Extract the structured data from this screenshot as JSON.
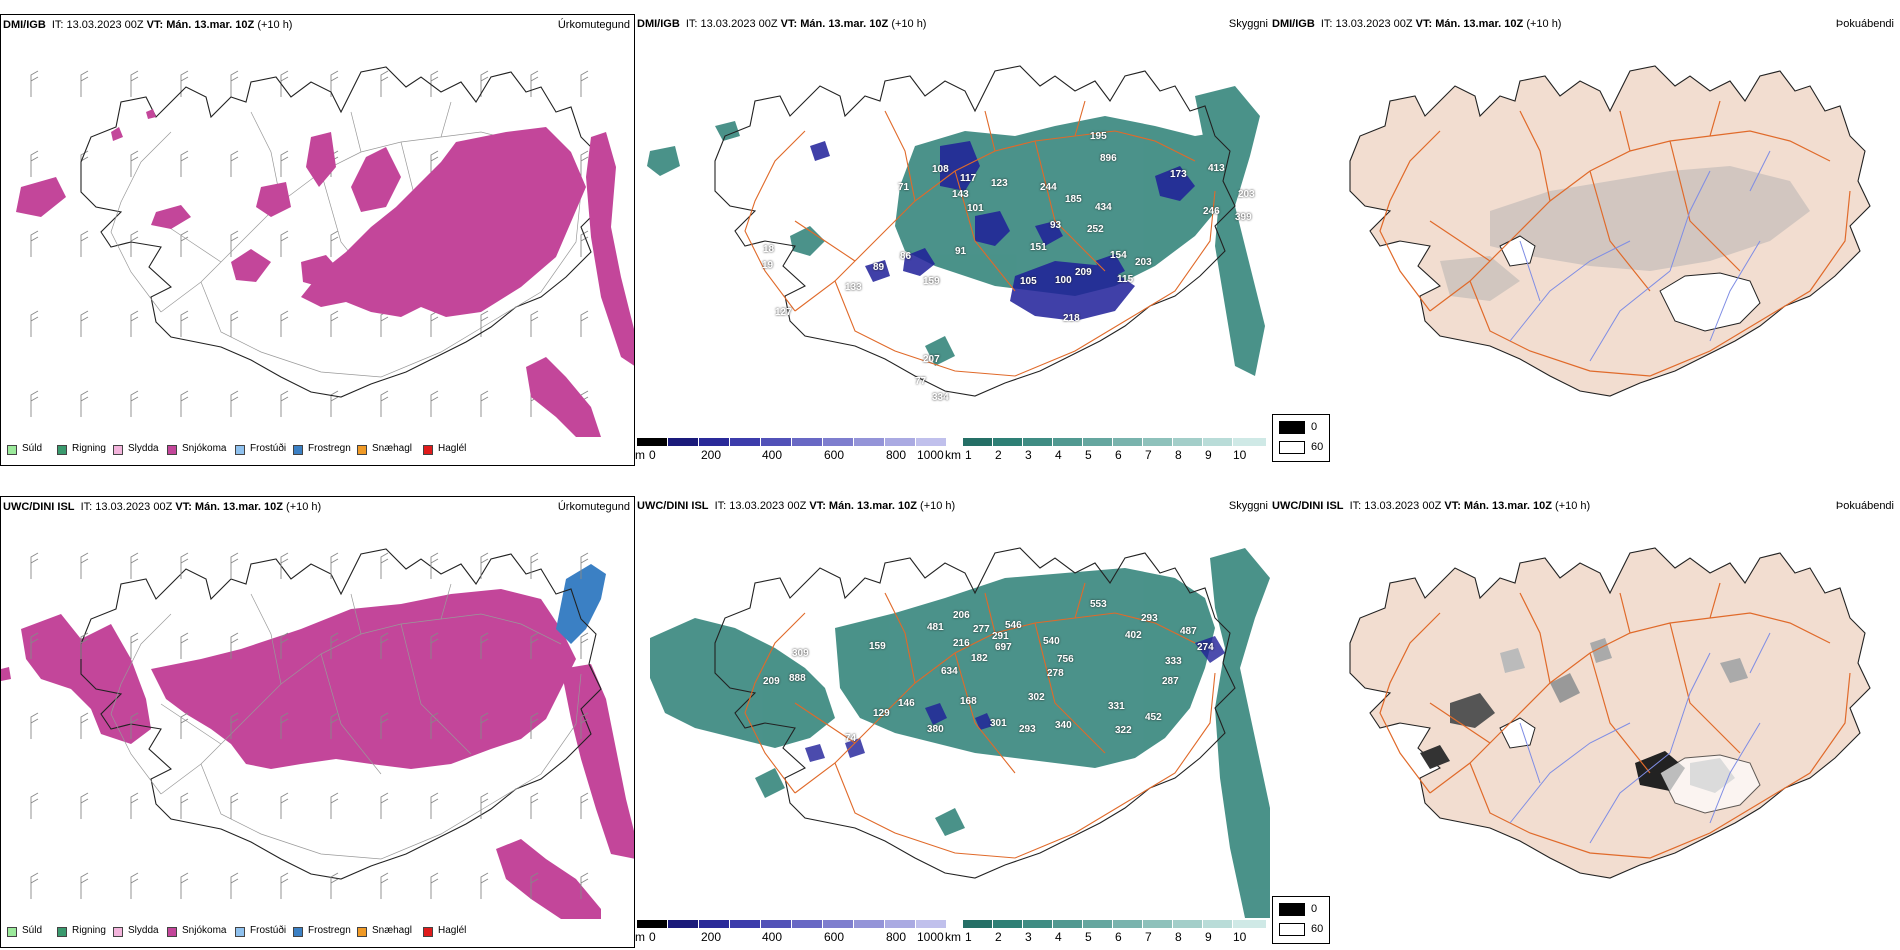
{
  "colors": {
    "snow": "#c3469a",
    "freezing_rain": "#3b80c4",
    "cloud_low": "#2b7f75",
    "cloud_high": "#1f1f99",
    "roads": "#e06a2a",
    "rivers": "#7f8de4",
    "land_fog": "#f2ddd0"
  },
  "rows": [
    {
      "model": "DMI/IGB",
      "run_label": "IT: 13.03.2023 00Z",
      "valid_prefix": "VT:",
      "valid_time": "Mán. 13.mar. 10Z",
      "lead": "(+10 h)",
      "cloud_values": [
        "195",
        "896",
        "173",
        "413",
        "203",
        "399",
        "246",
        "252",
        "434",
        "185",
        "244",
        "93",
        "151",
        "143",
        "101",
        "117",
        "123",
        "108",
        "71",
        "91",
        "86",
        "89",
        "133",
        "159",
        "203",
        "115",
        "154",
        "105",
        "100",
        "209",
        "218",
        "207",
        "77",
        "334",
        "18",
        "19",
        "127"
      ]
    },
    {
      "model": "UWC/DINI ISL",
      "run_label": "IT: 13.03.2023 00Z",
      "valid_prefix": "VT:",
      "valid_time": "Mán. 13.mar. 10Z",
      "lead": "(+10 h)",
      "cloud_values": [
        "553",
        "293",
        "487",
        "274",
        "402",
        "333",
        "287",
        "540",
        "546",
        "697",
        "756",
        "278",
        "302",
        "331",
        "452",
        "322",
        "340",
        "293",
        "301",
        "168",
        "206",
        "481",
        "277",
        "216",
        "182",
        "291",
        "634",
        "129",
        "146",
        "380",
        "309",
        "888",
        "209",
        "159",
        "74"
      ]
    }
  ],
  "tags": {
    "precip": "Úrkomutegund",
    "cloud": "Skyggni",
    "fog": "Þokuábendi"
  },
  "precip_legend": [
    {
      "label": "Súld",
      "color": "#9be99b"
    },
    {
      "label": "Rigning",
      "color": "#3a9a6e"
    },
    {
      "label": "Slydda",
      "color": "#f3b4dc"
    },
    {
      "label": "Snjókoma",
      "color": "#c3469a"
    },
    {
      "label": "Frostúði",
      "color": "#8fc1ee"
    },
    {
      "label": "Frostregn",
      "color": "#3b80c4"
    },
    {
      "label": "Snæhagl",
      "color": "#f09a26"
    },
    {
      "label": "Haglél",
      "color": "#e01b1b"
    }
  ],
  "cloud_base_scale": {
    "unit": "m",
    "labels": [
      "0",
      "200",
      "400",
      "600",
      "800",
      "1000"
    ],
    "colors": [
      "#000000",
      "#1a1a7a",
      "#2a2a99",
      "#3c3cab",
      "#5252b8",
      "#6868c4",
      "#7e7ece",
      "#9494d8",
      "#aaaae2",
      "#c0c0ec"
    ]
  },
  "visibility_scale": {
    "unit": "km",
    "labels": [
      "1",
      "2",
      "3",
      "4",
      "5",
      "6",
      "7",
      "8",
      "9",
      "10"
    ],
    "colors": [
      "#256f66",
      "#2e7f75",
      "#3f8c83",
      "#519991",
      "#65a69f",
      "#79b3ad",
      "#8ec1bb",
      "#a3cec9",
      "#b9dcd8",
      "#cfe9e6"
    ]
  },
  "fog_legend": [
    {
      "label": "0",
      "color": "#000000"
    },
    {
      "label": "60",
      "color": "#ffffff"
    }
  ]
}
